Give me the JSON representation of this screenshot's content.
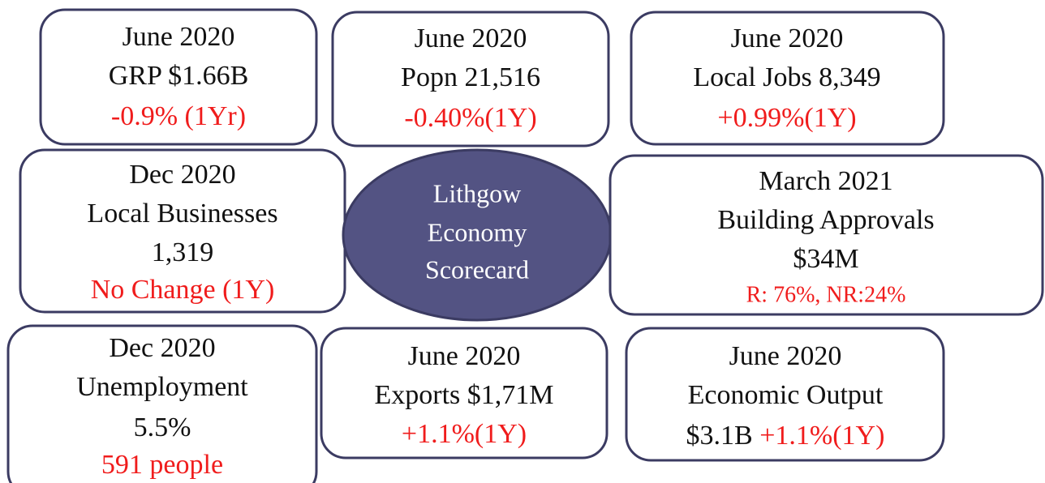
{
  "cards": [
    {
      "lines": [
        "June 2020",
        "GRP $1.66B"
      ],
      "change": "-0.9% (1Yr)"
    },
    {
      "lines": [
        "June 2020",
        "Popn 21,516"
      ],
      "change": "-0.40%(1Y)"
    },
    {
      "lines": [
        "June 2020",
        "Local Jobs 8,349"
      ],
      "change": "+0.99%(1Y)"
    },
    {
      "lines": [
        "Dec 2020",
        "Local Businesses",
        "1,319"
      ],
      "change": "No Change (1Y)"
    },
    {
      "lines": [
        "March 2021",
        "Building Approvals",
        "$34M"
      ],
      "change": "R: 76%, NR:24%"
    },
    {
      "lines": [
        "Dec 2020",
        "Unemployment",
        "5.5%"
      ],
      "change": "591 people"
    },
    {
      "lines": [
        "June 2020",
        "Exports $1,71M"
      ],
      "change": "+1.1%(1Y)"
    },
    {
      "lines": [
        "June 2020",
        "Economic Output",
        "$3.1B"
      ],
      "change": "+1.1%(1Y)"
    }
  ],
  "center": {
    "lines": [
      "Lithgow",
      "Economy",
      "Scorecard"
    ]
  }
}
